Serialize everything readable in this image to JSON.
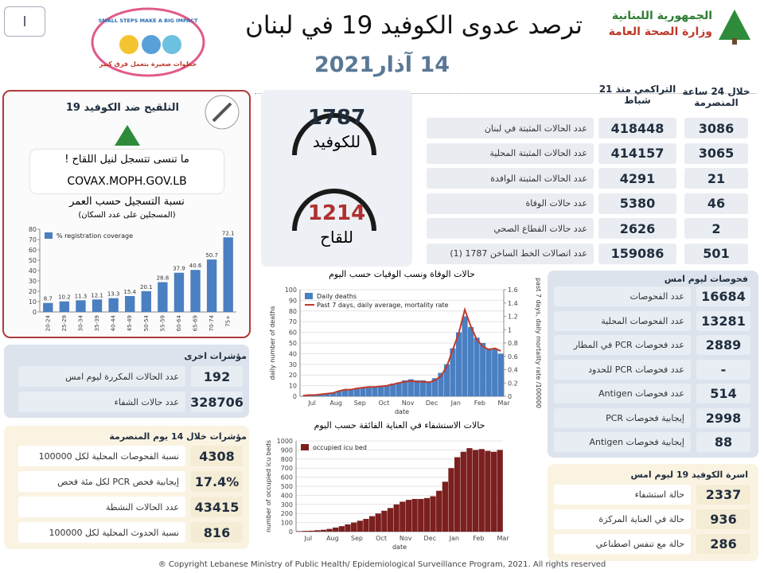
{
  "header": {
    "page_number": "I",
    "title": "ترصد عدوى الكوفيد 19 في لبنان",
    "date": "14 آذار2021",
    "ministry": [
      "الجمهورية اللبنانية",
      "وزارة الصحة العامة"
    ],
    "campaign": [
      "SMALL STEPS MAKE A BIG IMPACT",
      "خطوات صغيرة بتعمل فرق كبير"
    ]
  },
  "main_table": {
    "headers": {
      "daily": "خلال 24 ساعة المنصرمة",
      "cumulative": "التراكمي منذ 21 شباط"
    },
    "rows": [
      [
        "عدد الحالات المثبتة في لبنان",
        "418448",
        "3086"
      ],
      [
        "عدد الحالات المثبتة المحلية",
        "414157",
        "3065"
      ],
      [
        "عدد الحالات المثبتة الوافدة",
        "4291",
        "21"
      ],
      [
        "عدد حالات الوفاة",
        "5380",
        "46"
      ],
      [
        "عدد حالات القطاع الصحي",
        "2626",
        "2"
      ],
      [
        "عدد اتصالات الخط الساخن 1787 (1)",
        "159086",
        "501"
      ]
    ]
  },
  "hotline": {
    "covid_number": "1787",
    "covid_label": "للكوفيد",
    "vaccine_number": "1214",
    "vaccine_label": "للقاح"
  },
  "vaccination": {
    "title": "التلقيح ضد الكوفيد 19",
    "reminder": "ما تنسى تتسجل لنيل اللقاح !",
    "url": "COVAX.MOPH.GOV.LB",
    "chart_heading": "نسبة التسجيل حسب العمر",
    "chart_subheading": "(المسجلين على عدد السكان)"
  },
  "tests": {
    "title": "فحوصات ليوم امس",
    "rows": [
      [
        "عدد الفحوصات",
        "16684"
      ],
      [
        "عدد الفحوصات المحلية",
        "13281"
      ],
      [
        "عدد فحوصات PCR في المطار",
        "2889"
      ],
      [
        "عدد فحوصات PCR للحدود",
        "-"
      ],
      [
        "عدد فحوصات Antigen",
        "514"
      ],
      [
        "إيجابية فحوصات PCR",
        "2998"
      ],
      [
        "إيجابية فحوصات Antigen",
        "88"
      ]
    ]
  },
  "beds": {
    "title": "اسرة الكوفيد 19 ليوم امس",
    "rows": [
      [
        "حالة استشفاء",
        "2337"
      ],
      [
        "حالة في العناية المركزة",
        "936"
      ],
      [
        "حالة مع تنفس اصطناعي",
        "286"
      ]
    ]
  },
  "other_indicators": {
    "title": "مؤشرات اخرى",
    "rows": [
      [
        "عدد الحالات المكررة ليوم امس",
        "192"
      ],
      [
        "عدد حالات الشفاء",
        "328706"
      ]
    ]
  },
  "indicators_14_days": {
    "title": "مؤشرات خلال 14 يوم المنصرمة",
    "rows": [
      [
        "نسبة الفحوصات المحلية لكل 100000",
        "4308"
      ],
      [
        "إيجابية فحص PCR لكل مئة فحص",
        "17.4%"
      ],
      [
        "عدد الحالات النشطة",
        "43415"
      ],
      [
        "نسبة الحدوث المحلية لكل 100000",
        "816"
      ]
    ]
  },
  "footer": "® Copyright Lebanese Ministry of Public Health/ Epidemiological Surveillance Program, 2021. All rights reserved",
  "chart_data": [
    {
      "type": "bar",
      "categories": [
        "20-24",
        "25-29",
        "30-34",
        "35-39",
        "40-44",
        "45-49",
        "50-54",
        "55-59",
        "60-64",
        "65-69",
        "70-74",
        "75+"
      ],
      "series": [
        {
          "name": "% registration coverage",
          "color": "#4a7fc1",
          "values": [
            8.7,
            10.2,
            11.3,
            12.1,
            13.3,
            15.4,
            20.1,
            28.8,
            37.9,
            40.6,
            50.7,
            72.1
          ]
        }
      ],
      "ylim": [
        0,
        80
      ],
      "yticks": [
        0,
        10,
        20,
        30,
        40,
        50,
        60,
        70,
        80
      ],
      "grid": false,
      "legend": "upper left",
      "data_labels": true
    },
    {
      "type": "bar",
      "title": "حالات الوفاة ونسب الوفيات حسب اليوم",
      "categories": [
        "Jul",
        null,
        null,
        null,
        "Aug",
        null,
        null,
        null,
        "Sep",
        null,
        null,
        null,
        "Oct",
        null,
        null,
        null,
        "Nov",
        null,
        null,
        null,
        "Dec",
        null,
        null,
        null,
        "Jan",
        null,
        null,
        null,
        "Feb",
        null,
        null,
        null,
        "Mar",
        null
      ],
      "series": [
        {
          "name": "Daily deaths",
          "color": "#4a7fc1",
          "values": [
            0,
            1,
            1,
            2,
            2,
            3,
            5,
            6,
            6,
            7,
            8,
            8,
            9,
            10,
            10,
            12,
            13,
            15,
            16,
            15,
            15,
            14,
            17,
            22,
            30,
            45,
            60,
            75,
            65,
            55,
            50,
            45,
            45,
            40
          ]
        },
        {
          "name": "Past 7 days, daily average, mortality rate",
          "color": "#c0392b",
          "type": "line",
          "axis": "y2",
          "values": [
            0.01,
            0.02,
            0.02,
            0.03,
            0.04,
            0.05,
            0.08,
            0.1,
            0.1,
            0.12,
            0.13,
            0.14,
            0.14,
            0.15,
            0.16,
            0.18,
            0.2,
            0.22,
            0.23,
            0.22,
            0.22,
            0.21,
            0.24,
            0.3,
            0.45,
            0.7,
            0.95,
            1.3,
            1.05,
            0.85,
            0.75,
            0.7,
            0.72,
            0.68
          ]
        }
      ],
      "ylim": [
        0,
        100
      ],
      "yticks": [
        0,
        10,
        20,
        30,
        40,
        50,
        60,
        70,
        80,
        90,
        100
      ],
      "y2lim": [
        0,
        1.6
      ],
      "y2ticks": [
        0,
        0.2,
        0.4,
        0.6,
        0.8,
        1,
        1.2,
        1.4,
        1.6
      ],
      "xlabel": "date",
      "ylabel": "daily number of deaths",
      "y2label": "past 7 days, daily mortality rate /100000",
      "grid": true,
      "legend": "upper left",
      "data_labels": false
    },
    {
      "type": "bar",
      "title": "حالات الاستشفاء في العناية الفائقة حسب اليوم",
      "categories": [
        "Jul",
        null,
        null,
        null,
        "Aug",
        null,
        null,
        null,
        "Sep",
        null,
        null,
        null,
        "Oct",
        null,
        null,
        null,
        "Nov",
        null,
        null,
        null,
        "Dec",
        null,
        null,
        null,
        "Jan",
        null,
        null,
        null,
        "Feb",
        null,
        null,
        null,
        "Mar",
        null
      ],
      "series": [
        {
          "name": "occupied icu bed",
          "color": "#7b1f1f",
          "values": [
            5,
            8,
            10,
            15,
            20,
            30,
            45,
            60,
            80,
            100,
            120,
            140,
            170,
            200,
            230,
            260,
            300,
            330,
            350,
            360,
            360,
            370,
            390,
            450,
            550,
            700,
            820,
            880,
            920,
            900,
            910,
            890,
            880,
            900
          ]
        }
      ],
      "ylim": [
        0,
        1000
      ],
      "yticks": [
        0,
        100,
        200,
        300,
        400,
        500,
        600,
        700,
        800,
        900,
        1000
      ],
      "xlabel": "date",
      "ylabel": "number of occupied icu beds",
      "grid": true,
      "legend": "upper left",
      "data_labels": false
    }
  ]
}
